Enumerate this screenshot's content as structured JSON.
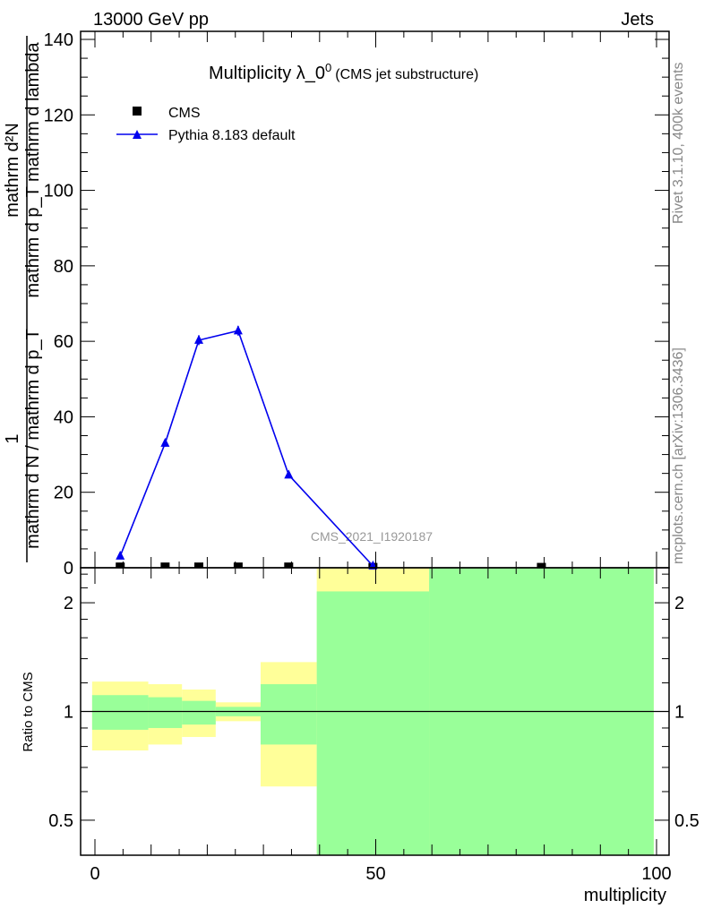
{
  "header": {
    "left": "13000 GeV pp",
    "right": "Jets"
  },
  "side_labels": {
    "rivet": "Rivet 3.1.10,  400k events",
    "mcplots": "mcplots.cern.ch [arXiv:1306.3436]"
  },
  "watermark": "CMS_2021_I1920187",
  "chart_data": [
    {
      "type": "line",
      "title": "Multiplicity λ_0",
      "title_sup": "0",
      "subtitle": "(CMS jet substructure)",
      "ylabel_numerator": "mathrm d²N",
      "ylabel_denominator": "mathrm d p_T mathrm d lambda",
      "ylabel_prefix_num": "1",
      "ylabel_prefix_den": "mathrm d N / mathrm d p_T",
      "ylim": [
        0,
        140
      ],
      "yticks": [
        0,
        20,
        40,
        60,
        80,
        100,
        120,
        140
      ],
      "xlim": [
        -3,
        101
      ],
      "bin_edges": [
        -0.5,
        9.5,
        15.5,
        21.5,
        29.5,
        39.5,
        59.5,
        99.5
      ],
      "x": [
        4.5,
        12.5,
        18.5,
        25.5,
        34.5,
        49.5,
        79.5
      ],
      "legend_position": "top-left",
      "series": [
        {
          "name": "CMS",
          "color": "#000000",
          "marker": "square",
          "values": [
            0.2,
            0.2,
            0.2,
            0.2,
            0.2,
            0.1,
            0.1
          ]
        },
        {
          "name": "Pythia 8.183 default",
          "color": "#0000ee",
          "marker": "triangle",
          "values": [
            3.1,
            33.0,
            60.3,
            62.8,
            24.6,
            0.5,
            null
          ],
          "errors": [
            0.4,
            0.9,
            1.3,
            1.3,
            0.6,
            0.1,
            null
          ]
        }
      ]
    },
    {
      "type": "area",
      "ylabel": "Ratio to CMS",
      "xlabel": "multiplicity",
      "yscale": "log",
      "ylim": [
        0.4,
        2.5
      ],
      "yticks": [
        0.5,
        1,
        2
      ],
      "xticks": [
        0,
        50,
        100
      ],
      "bin_edges": [
        -0.5,
        9.5,
        15.5,
        21.5,
        29.5,
        39.5,
        59.5,
        99.5
      ],
      "band_outer": {
        "color": "#ffff99",
        "low": [
          0.78,
          0.81,
          0.85,
          0.94,
          0.62,
          0.3,
          0.3
        ],
        "high": [
          1.21,
          1.19,
          1.15,
          1.06,
          1.37,
          3.0,
          3.0
        ]
      },
      "band_inner": {
        "color": "#99ff99",
        "low": [
          0.89,
          0.9,
          0.92,
          0.97,
          0.81,
          0.3,
          0.3
        ],
        "high": [
          1.11,
          1.095,
          1.07,
          1.03,
          1.19,
          2.15,
          3.0
        ]
      }
    }
  ]
}
